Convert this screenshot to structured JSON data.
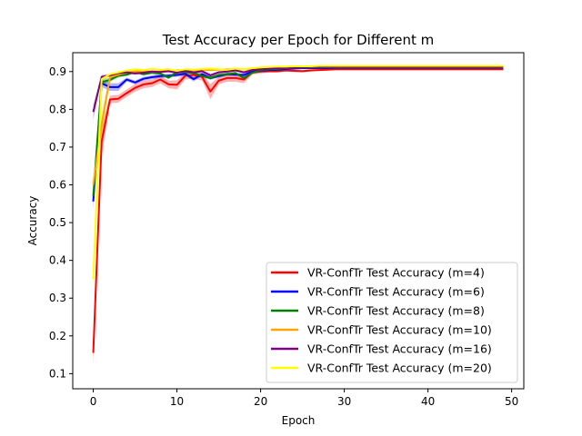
{
  "chart_data": {
    "type": "line",
    "title": "Test Accuracy per Epoch for Different m",
    "xlabel": "Epoch",
    "ylabel": "Accuracy",
    "xlim": [
      -2.45,
      51.45
    ],
    "ylim": [
      0.06,
      0.95
    ],
    "xticks": [
      0,
      10,
      20,
      30,
      40,
      50
    ],
    "yticks": [
      0.1,
      0.2,
      0.3,
      0.4,
      0.5,
      0.6,
      0.7,
      0.8,
      0.9
    ],
    "legend_position": "lower-right",
    "grid": false,
    "shaded_band": true,
    "series": [
      {
        "name": "VR-ConfTr Test Accuracy (m=4)",
        "color": "#ff0000",
        "values": [
          0.155,
          0.715,
          0.826,
          0.828,
          0.843,
          0.857,
          0.866,
          0.869,
          0.879,
          0.866,
          0.865,
          0.889,
          0.891,
          0.886,
          0.847,
          0.876,
          0.883,
          0.883,
          0.879,
          0.897,
          0.9,
          0.901,
          0.901,
          0.903,
          0.902,
          0.901,
          0.903,
          0.904,
          0.905,
          0.906,
          0.906,
          0.906,
          0.906,
          0.906,
          0.906,
          0.906,
          0.906,
          0.906,
          0.906,
          0.906,
          0.906,
          0.906,
          0.906,
          0.906,
          0.906,
          0.906,
          0.906,
          0.906,
          0.906,
          0.906
        ],
        "band": [
          0.03,
          0.04,
          0.01,
          0.01,
          0.01,
          0.01,
          0.01,
          0.01,
          0.01,
          0.01,
          0.012,
          0.01,
          0.01,
          0.01,
          0.02,
          0.01,
          0.01,
          0.01,
          0.01,
          0.005,
          0.005,
          0.004,
          0.004,
          0.003,
          0.003,
          0.003,
          0.003,
          0.002,
          0.002,
          0.002,
          0.002,
          0.002,
          0.002,
          0.002,
          0.002,
          0.002,
          0.002,
          0.002,
          0.002,
          0.002,
          0.002,
          0.002,
          0.002,
          0.002,
          0.002,
          0.002,
          0.002,
          0.002,
          0.002,
          0.002
        ]
      },
      {
        "name": "VR-ConfTr Test Accuracy (m=6)",
        "color": "#0000ff",
        "values": [
          0.556,
          0.869,
          0.859,
          0.859,
          0.879,
          0.871,
          0.881,
          0.885,
          0.888,
          0.889,
          0.891,
          0.894,
          0.88,
          0.893,
          0.883,
          0.888,
          0.893,
          0.892,
          0.891,
          0.9,
          0.902,
          0.904,
          0.905,
          0.907,
          0.908,
          0.909,
          0.909,
          0.909,
          0.909,
          0.91,
          0.91,
          0.91,
          0.91,
          0.91,
          0.91,
          0.91,
          0.91,
          0.91,
          0.91,
          0.91,
          0.91,
          0.91,
          0.91,
          0.91,
          0.91,
          0.91,
          0.91,
          0.91,
          0.91,
          0.91
        ],
        "band": [
          0.02,
          0.01,
          0.01,
          0.01,
          0.005,
          0.005,
          0.005,
          0.005,
          0.005,
          0.005,
          0.005,
          0.005,
          0.006,
          0.005,
          0.005,
          0.004,
          0.004,
          0.004,
          0.004,
          0.003,
          0.003,
          0.002,
          0.002,
          0.002,
          0.002,
          0.002,
          0.002,
          0.002,
          0.002,
          0.002,
          0.002,
          0.002,
          0.002,
          0.002,
          0.002,
          0.002,
          0.002,
          0.002,
          0.002,
          0.002,
          0.002,
          0.002,
          0.002,
          0.002,
          0.002,
          0.002,
          0.002,
          0.002,
          0.002,
          0.002
        ]
      },
      {
        "name": "VR-ConfTr Test Accuracy (m=8)",
        "color": "#008000",
        "values": [
          0.57,
          0.872,
          0.878,
          0.889,
          0.892,
          0.899,
          0.893,
          0.897,
          0.895,
          0.884,
          0.898,
          0.899,
          0.896,
          0.888,
          0.883,
          0.891,
          0.893,
          0.896,
          0.883,
          0.897,
          0.903,
          0.906,
          0.907,
          0.909,
          0.91,
          0.91,
          0.911,
          0.911,
          0.911,
          0.911,
          0.911,
          0.911,
          0.911,
          0.911,
          0.911,
          0.911,
          0.911,
          0.911,
          0.911,
          0.911,
          0.911,
          0.911,
          0.911,
          0.911,
          0.911,
          0.911,
          0.911,
          0.911,
          0.911,
          0.911
        ],
        "band": [
          0.02,
          0.01,
          0.005,
          0.005,
          0.004,
          0.004,
          0.004,
          0.004,
          0.004,
          0.004,
          0.004,
          0.004,
          0.004,
          0.004,
          0.004,
          0.004,
          0.004,
          0.004,
          0.004,
          0.003,
          0.002,
          0.002,
          0.002,
          0.002,
          0.002,
          0.002,
          0.002,
          0.002,
          0.002,
          0.002,
          0.002,
          0.002,
          0.002,
          0.002,
          0.002,
          0.002,
          0.002,
          0.002,
          0.002,
          0.002,
          0.002,
          0.002,
          0.002,
          0.002,
          0.002,
          0.002,
          0.002,
          0.002,
          0.002,
          0.002
        ]
      },
      {
        "name": "VR-ConfTr Test Accuracy (m=10)",
        "color": "#ffa500",
        "values": [
          0.6,
          0.76,
          0.885,
          0.892,
          0.898,
          0.9,
          0.902,
          0.899,
          0.9,
          0.901,
          0.903,
          0.904,
          0.904,
          0.905,
          0.904,
          0.905,
          0.906,
          0.906,
          0.906,
          0.907,
          0.908,
          0.909,
          0.91,
          0.911,
          0.912,
          0.912,
          0.912,
          0.912,
          0.912,
          0.912,
          0.912,
          0.912,
          0.912,
          0.912,
          0.912,
          0.912,
          0.912,
          0.912,
          0.912,
          0.912,
          0.912,
          0.912,
          0.912,
          0.912,
          0.912,
          0.912,
          0.912,
          0.912,
          0.912,
          0.912
        ],
        "band": [
          0.02,
          0.03,
          0.005,
          0.004,
          0.004,
          0.003,
          0.003,
          0.003,
          0.003,
          0.003,
          0.003,
          0.003,
          0.003,
          0.003,
          0.003,
          0.003,
          0.003,
          0.003,
          0.003,
          0.002,
          0.002,
          0.002,
          0.002,
          0.002,
          0.002,
          0.002,
          0.002,
          0.002,
          0.002,
          0.002,
          0.002,
          0.002,
          0.002,
          0.002,
          0.002,
          0.002,
          0.002,
          0.002,
          0.002,
          0.002,
          0.002,
          0.002,
          0.002,
          0.002,
          0.002,
          0.002,
          0.002,
          0.002,
          0.002,
          0.002
        ]
      },
      {
        "name": "VR-ConfTr Test Accuracy (m=16)",
        "color": "#800080",
        "values": [
          0.793,
          0.886,
          0.89,
          0.896,
          0.898,
          0.895,
          0.897,
          0.9,
          0.899,
          0.901,
          0.897,
          0.902,
          0.898,
          0.901,
          0.89,
          0.898,
          0.9,
          0.903,
          0.898,
          0.904,
          0.906,
          0.908,
          0.909,
          0.91,
          0.911,
          0.911,
          0.912,
          0.912,
          0.912,
          0.912,
          0.912,
          0.912,
          0.912,
          0.912,
          0.912,
          0.912,
          0.912,
          0.912,
          0.912,
          0.912,
          0.912,
          0.912,
          0.912,
          0.912,
          0.912,
          0.912,
          0.912,
          0.912,
          0.912,
          0.912
        ],
        "band": [
          0.02,
          0.005,
          0.004,
          0.003,
          0.003,
          0.003,
          0.003,
          0.003,
          0.003,
          0.003,
          0.003,
          0.003,
          0.003,
          0.003,
          0.004,
          0.003,
          0.003,
          0.003,
          0.003,
          0.002,
          0.002,
          0.002,
          0.002,
          0.002,
          0.002,
          0.002,
          0.002,
          0.002,
          0.002,
          0.002,
          0.002,
          0.002,
          0.002,
          0.002,
          0.002,
          0.002,
          0.002,
          0.002,
          0.002,
          0.002,
          0.002,
          0.002,
          0.002,
          0.002,
          0.002,
          0.002,
          0.002,
          0.002,
          0.002,
          0.002
        ]
      },
      {
        "name": "VR-ConfTr Test Accuracy (m=20)",
        "color": "#ffff00",
        "values": [
          0.35,
          0.88,
          0.893,
          0.898,
          0.903,
          0.906,
          0.904,
          0.907,
          0.905,
          0.906,
          0.902,
          0.906,
          0.905,
          0.907,
          0.908,
          0.906,
          0.905,
          0.908,
          0.906,
          0.909,
          0.911,
          0.912,
          0.913,
          0.913,
          0.914,
          0.914,
          0.914,
          0.915,
          0.915,
          0.915,
          0.915,
          0.915,
          0.915,
          0.915,
          0.915,
          0.915,
          0.915,
          0.915,
          0.915,
          0.915,
          0.915,
          0.915,
          0.915,
          0.915,
          0.915,
          0.915,
          0.915,
          0.915,
          0.915,
          0.915
        ],
        "band": [
          0.03,
          0.005,
          0.003,
          0.003,
          0.002,
          0.002,
          0.002,
          0.002,
          0.002,
          0.002,
          0.002,
          0.002,
          0.002,
          0.002,
          0.002,
          0.002,
          0.002,
          0.002,
          0.002,
          0.002,
          0.002,
          0.002,
          0.002,
          0.002,
          0.002,
          0.002,
          0.002,
          0.002,
          0.002,
          0.002,
          0.002,
          0.002,
          0.002,
          0.002,
          0.002,
          0.002,
          0.002,
          0.002,
          0.002,
          0.002,
          0.002,
          0.002,
          0.002,
          0.002,
          0.002,
          0.002,
          0.002,
          0.002,
          0.002,
          0.002
        ]
      }
    ]
  }
}
